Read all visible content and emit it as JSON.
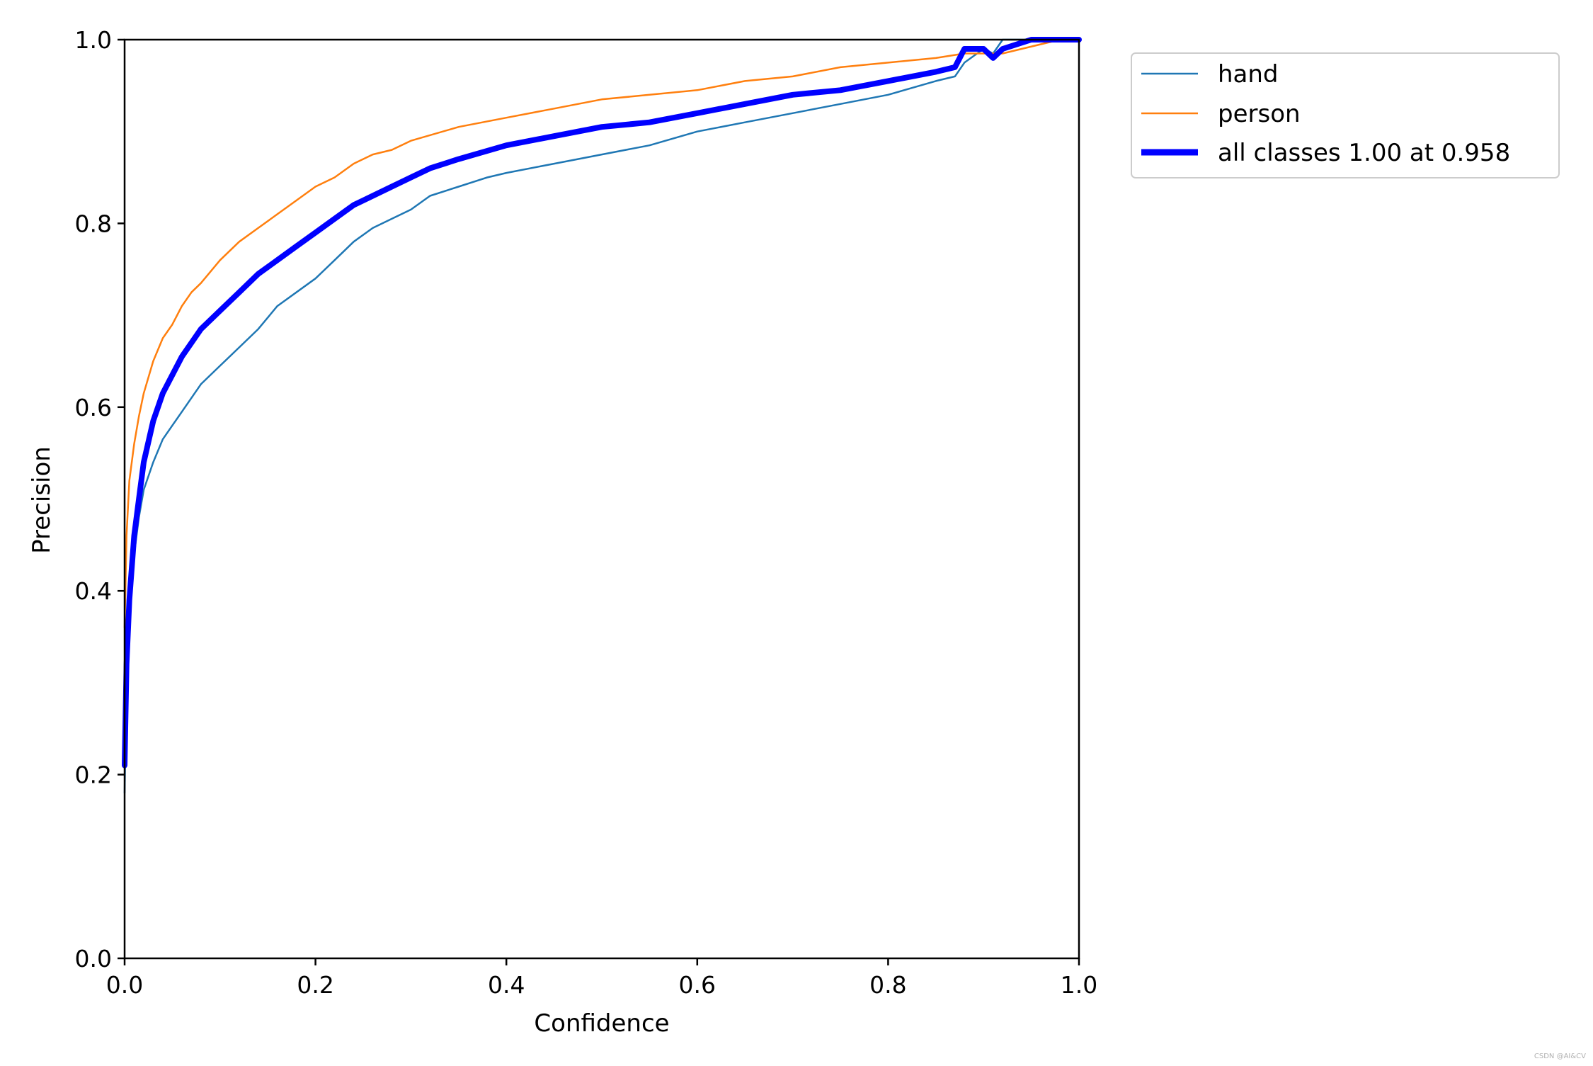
{
  "chart_data": {
    "type": "line",
    "title": "",
    "xlabel": "Confidence",
    "ylabel": "Precision",
    "xlim": [
      0,
      1
    ],
    "ylim": [
      0,
      1
    ],
    "xticks": [
      "0.0",
      "0.2",
      "0.4",
      "0.6",
      "0.8",
      "1.0"
    ],
    "yticks": [
      "0.0",
      "0.2",
      "0.4",
      "0.6",
      "0.8",
      "1.0"
    ],
    "grid": false,
    "legend_position": "outside-top-right",
    "series": [
      {
        "name": "hand",
        "color": "#1f77b4",
        "style": "thin",
        "x": [
          0.0,
          0.002,
          0.005,
          0.01,
          0.015,
          0.02,
          0.03,
          0.04,
          0.05,
          0.06,
          0.07,
          0.08,
          0.1,
          0.12,
          0.14,
          0.16,
          0.18,
          0.2,
          0.22,
          0.24,
          0.26,
          0.28,
          0.3,
          0.32,
          0.35,
          0.38,
          0.4,
          0.45,
          0.5,
          0.55,
          0.6,
          0.65,
          0.7,
          0.75,
          0.8,
          0.85,
          0.87,
          0.88,
          0.9,
          0.91,
          0.92,
          0.95,
          0.97,
          1.0
        ],
        "y": [
          0.18,
          0.3,
          0.38,
          0.44,
          0.48,
          0.51,
          0.54,
          0.565,
          0.58,
          0.595,
          0.61,
          0.625,
          0.645,
          0.665,
          0.685,
          0.71,
          0.725,
          0.74,
          0.76,
          0.78,
          0.795,
          0.805,
          0.815,
          0.83,
          0.84,
          0.85,
          0.855,
          0.865,
          0.875,
          0.885,
          0.9,
          0.91,
          0.92,
          0.93,
          0.94,
          0.955,
          0.96,
          0.975,
          0.99,
          0.985,
          1.0,
          1.0,
          1.0,
          1.0
        ]
      },
      {
        "name": "person",
        "color": "#ff7f0e",
        "style": "thin",
        "x": [
          0.0,
          0.002,
          0.005,
          0.01,
          0.015,
          0.02,
          0.03,
          0.04,
          0.05,
          0.06,
          0.07,
          0.08,
          0.1,
          0.12,
          0.14,
          0.16,
          0.18,
          0.2,
          0.22,
          0.24,
          0.26,
          0.28,
          0.3,
          0.35,
          0.4,
          0.45,
          0.5,
          0.55,
          0.6,
          0.65,
          0.7,
          0.75,
          0.8,
          0.85,
          0.88,
          0.9,
          0.92,
          0.94,
          0.96,
          0.98,
          1.0
        ],
        "y": [
          0.36,
          0.46,
          0.52,
          0.56,
          0.59,
          0.615,
          0.65,
          0.675,
          0.69,
          0.71,
          0.725,
          0.735,
          0.76,
          0.78,
          0.795,
          0.81,
          0.825,
          0.84,
          0.85,
          0.865,
          0.875,
          0.88,
          0.89,
          0.905,
          0.915,
          0.925,
          0.935,
          0.94,
          0.945,
          0.955,
          0.96,
          0.97,
          0.975,
          0.98,
          0.985,
          0.985,
          0.985,
          0.99,
          0.995,
          1.0,
          1.0
        ]
      },
      {
        "name": "all classes 1.00 at 0.958",
        "color": "#0000ff",
        "style": "thick",
        "x": [
          0.0,
          0.002,
          0.005,
          0.01,
          0.015,
          0.02,
          0.03,
          0.04,
          0.05,
          0.06,
          0.07,
          0.08,
          0.1,
          0.12,
          0.14,
          0.16,
          0.18,
          0.2,
          0.22,
          0.24,
          0.26,
          0.28,
          0.3,
          0.32,
          0.35,
          0.4,
          0.45,
          0.5,
          0.55,
          0.6,
          0.65,
          0.7,
          0.75,
          0.8,
          0.85,
          0.87,
          0.88,
          0.9,
          0.91,
          0.92,
          0.95,
          0.958,
          1.0
        ],
        "y": [
          0.21,
          0.32,
          0.39,
          0.46,
          0.5,
          0.54,
          0.585,
          0.615,
          0.635,
          0.655,
          0.67,
          0.685,
          0.705,
          0.725,
          0.745,
          0.76,
          0.775,
          0.79,
          0.805,
          0.82,
          0.83,
          0.84,
          0.85,
          0.86,
          0.87,
          0.885,
          0.895,
          0.905,
          0.91,
          0.92,
          0.93,
          0.94,
          0.945,
          0.955,
          0.965,
          0.97,
          0.99,
          0.99,
          0.98,
          0.99,
          1.0,
          1.0,
          1.0
        ]
      }
    ]
  },
  "watermark": "CSDN @AI&CV"
}
